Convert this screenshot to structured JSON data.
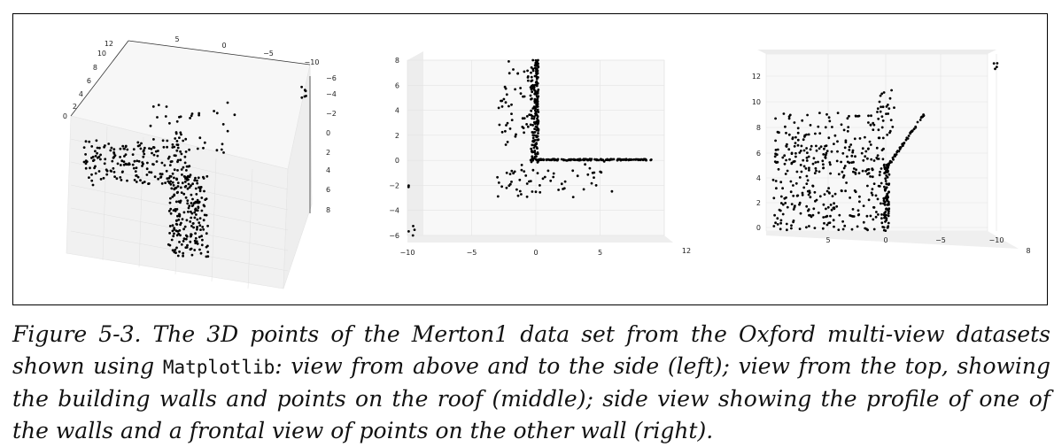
{
  "figure": {
    "caption": {
      "prefix": "Figure 5-3. The 3D points of the Merton1 data set from the Oxford multi-view datasets shown using ",
      "code": "Matplotlib",
      "suffix": ": view from above and to the side (left); view from the top, showing the building walls and points on the roof (middle); side view showing the profile of one of the walls and a frontal view of points on the other wall (right)."
    }
  },
  "chart_data": [
    {
      "type": "scatter",
      "panel": "left",
      "projection": "3d",
      "view": "from above and to the side",
      "x_ticks": [
        "5",
        "0",
        "−5",
        "−10"
      ],
      "y_ticks": [
        "12",
        "10",
        "8",
        "6",
        "4",
        "2",
        "0"
      ],
      "z_ticks": [
        "−6",
        "−4",
        "−2",
        "0",
        "2",
        "4",
        "6",
        "8"
      ],
      "grid": true,
      "point_color": "#000000"
    },
    {
      "type": "scatter",
      "panel": "middle",
      "projection": "3d",
      "view": "top",
      "x_ticks": [
        "−10",
        "−5",
        "0",
        "5"
      ],
      "y_ticks": [
        "8",
        "6",
        "4",
        "2",
        "0",
        "−2",
        "−4",
        "−6"
      ],
      "end_label": "12",
      "xlim": [
        -10,
        10
      ],
      "ylim": [
        -6,
        8
      ],
      "grid": true,
      "point_color": "#000000",
      "series": [
        {
          "segment": "vertical wall",
          "x": [
            0,
            0
          ],
          "y": [
            -0.5,
            8
          ]
        },
        {
          "segment": "horizontal wall",
          "x": [
            0,
            9
          ],
          "y": [
            0,
            0.2
          ]
        },
        {
          "segment": "roof points",
          "x": [
            -3,
            6
          ],
          "y": [
            -3,
            8
          ]
        }
      ]
    },
    {
      "type": "scatter",
      "panel": "right",
      "projection": "3d",
      "view": "side",
      "x_ticks": [
        "5",
        "0",
        "−5",
        "−10"
      ],
      "y_ticks": [
        "12",
        "10",
        "8",
        "6",
        "4",
        "2",
        "0"
      ],
      "end_label": "8",
      "grid": true,
      "point_color": "#000000"
    }
  ]
}
